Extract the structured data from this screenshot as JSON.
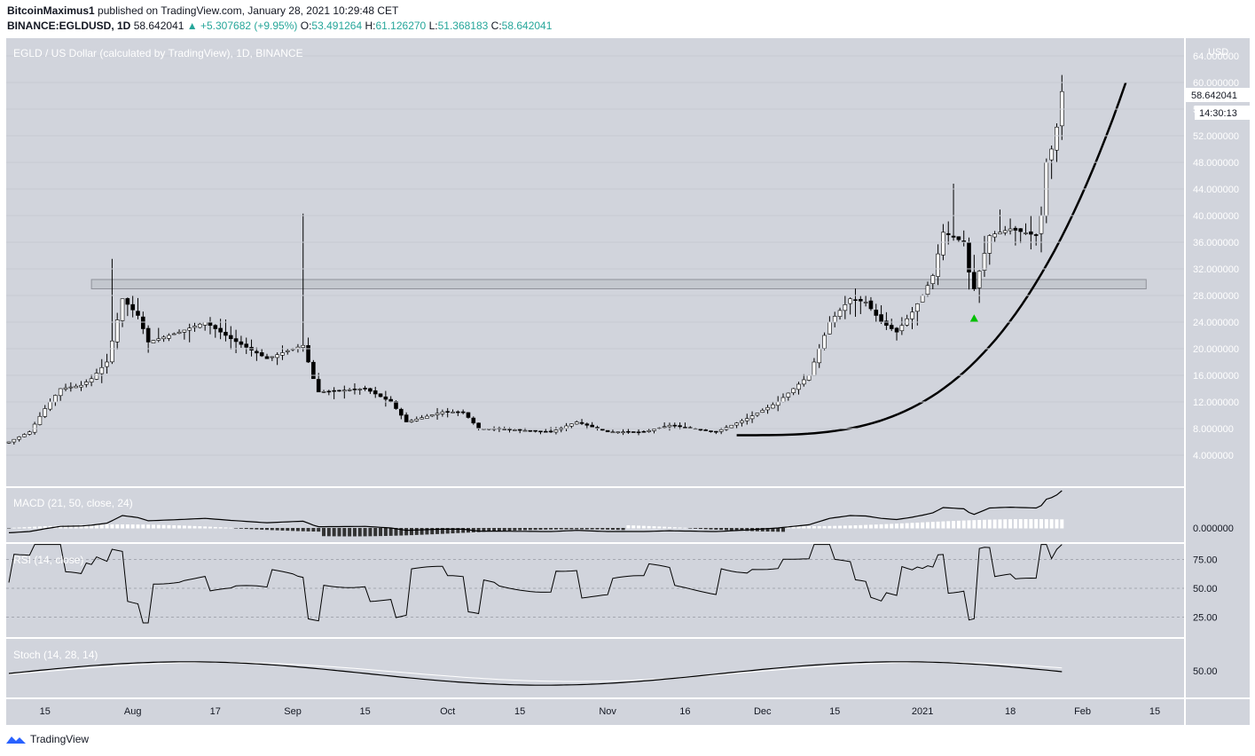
{
  "header": {
    "author": "BitcoinMaximus1",
    "published": "published on TradingView.com, January 28, 2021 10:29:48 CET",
    "symbol": "BINANCE:EGLDUSD, 1D",
    "last": "58.642041",
    "change": "▲ +5.307682 (+9.95%)",
    "o_label": "O:",
    "o": "53.491264",
    "h_label": "H:",
    "h": "61.126270",
    "l_label": "L:",
    "l": "51.368183",
    "c_label": "C:",
    "c": "58.642041"
  },
  "panes": {
    "main_title": "EGLD / US Dollar (calculated by TradingView), 1D, BINANCE",
    "macd_title": "MACD (21, 50, close, 24)",
    "rsi_title": "RSI (14, close)",
    "stoch_title": "Stoch (14, 28, 14)",
    "currency": "USD",
    "price_tag": "58.642041",
    "countdown": "14:30:13"
  },
  "colors": {
    "pane_bg": "#d1d4dc",
    "candle_up": "#ffffff",
    "candle_down": "#000000",
    "wick": "#000000",
    "accent_up": "#26a69a",
    "triangle": "#00c000"
  },
  "footer": {
    "brand": "TradingView"
  },
  "chart_data": {
    "type": "candlestick",
    "title": "EGLD / US Dollar (calculated by TradingView), 1D, BINANCE",
    "y_axis": {
      "ticks": [
        "4.000000",
        "8.000000",
        "12.000000",
        "16.000000",
        "20.000000",
        "24.000000",
        "28.000000",
        "32.000000",
        "36.000000",
        "40.000000",
        "44.000000",
        "48.000000",
        "52.000000",
        "56.000000",
        "60.000000",
        "64.000000"
      ],
      "range": [
        0,
        67
      ]
    },
    "x_axis": {
      "ticks": [
        "15",
        "Aug",
        "17",
        "Sep",
        "15",
        "Oct",
        "15",
        "Nov",
        "16",
        "Dec",
        "15",
        "2021",
        "18",
        "Feb",
        "15"
      ]
    },
    "date_range": [
      "2020-07-08",
      "2021-01-28"
    ],
    "anchor_closes": [
      [
        "2020-07-08",
        6.0
      ],
      [
        "2020-07-12",
        7.5
      ],
      [
        "2020-07-15",
        11.0
      ],
      [
        "2020-07-18",
        14.0
      ],
      [
        "2020-07-22",
        14.5
      ],
      [
        "2020-07-24",
        15.5
      ],
      [
        "2020-07-27",
        18.0
      ],
      [
        "2020-07-30",
        27.5
      ],
      [
        "2020-08-02",
        25.0
      ],
      [
        "2020-08-04",
        21.0
      ],
      [
        "2020-08-10",
        22.5
      ],
      [
        "2020-08-15",
        24.0
      ],
      [
        "2020-08-20",
        21.5
      ],
      [
        "2020-08-27",
        18.5
      ],
      [
        "2020-09-01",
        20.0
      ],
      [
        "2020-09-03",
        20.5
      ],
      [
        "2020-09-05",
        15.5
      ],
      [
        "2020-09-06",
        13.5
      ],
      [
        "2020-09-15",
        14.0
      ],
      [
        "2020-09-20",
        12.0
      ],
      [
        "2020-09-23",
        9.0
      ],
      [
        "2020-09-30",
        10.5
      ],
      [
        "2020-10-04",
        10.5
      ],
      [
        "2020-10-07",
        8.0
      ],
      [
        "2020-10-10",
        8.0
      ],
      [
        "2020-10-21",
        7.5
      ],
      [
        "2020-10-26",
        9.0
      ],
      [
        "2020-11-01",
        7.5
      ],
      [
        "2020-11-08",
        7.5
      ],
      [
        "2020-11-13",
        8.5
      ],
      [
        "2020-11-22",
        7.5
      ],
      [
        "2020-11-28",
        9.5
      ],
      [
        "2020-12-04",
        12.0
      ],
      [
        "2020-12-10",
        16.0
      ],
      [
        "2020-12-14",
        24.0
      ],
      [
        "2020-12-18",
        27.5
      ],
      [
        "2020-12-21",
        27.0
      ],
      [
        "2020-12-24",
        24.0
      ],
      [
        "2020-12-27",
        22.5
      ],
      [
        "2020-12-30",
        25.5
      ],
      [
        "2021-01-01",
        28.0
      ],
      [
        "2021-01-03",
        31.0
      ],
      [
        "2021-01-05",
        37.5
      ],
      [
        "2021-01-09",
        36.0
      ],
      [
        "2021-01-10",
        31.5
      ],
      [
        "2021-01-11",
        29.0
      ],
      [
        "2021-01-14",
        37.0
      ],
      [
        "2021-01-18",
        38.0
      ],
      [
        "2021-01-23",
        37.0
      ],
      [
        "2021-01-24",
        40.0
      ],
      [
        "2021-01-25",
        48.0
      ],
      [
        "2021-01-26",
        50.0
      ],
      [
        "2021-01-27",
        53.3
      ],
      [
        "2021-01-28",
        58.64
      ]
    ],
    "resistance_zone": [
      29.0,
      30.4
    ],
    "macd_axis": {
      "ticks": [
        "0.000000"
      ]
    },
    "rsi_axis": {
      "ticks": [
        "75.00",
        "50.00",
        "25.00"
      ]
    },
    "stoch_axis": {
      "ticks": [
        "50.00"
      ]
    }
  }
}
